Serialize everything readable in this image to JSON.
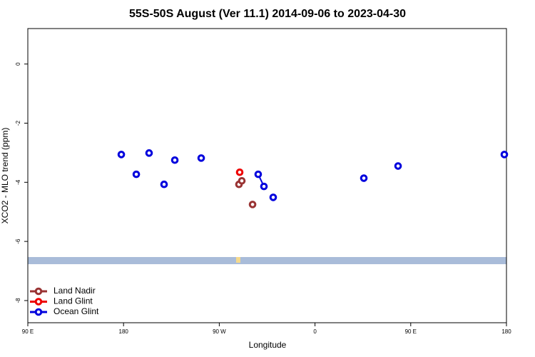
{
  "chart_data": {
    "type": "line",
    "title": "55S-50S August (Ver 11.1)   2014-09-06 to 2023-04-30",
    "x_label": "Longitude",
    "y_label": "XCO2 - MLO trend (ppm)",
    "xlim": [
      90,
      540
    ],
    "xticks": [
      {
        "value": 90,
        "label": "90 E"
      },
      180,
      {
        "value": 270,
        "label": "90 W"
      },
      {
        "value": 360,
        "label": "0"
      },
      {
        "value": 450,
        "label": "90 E"
      },
      {
        "value": 540,
        "label": "180"
      }
    ],
    "ylim": [
      -8.75,
      1.2
    ],
    "yticks": [
      0,
      -2,
      -4,
      -6,
      -8
    ],
    "legend": "bottom-left",
    "series": [
      {
        "name": "Land Nadir",
        "color": "#993333",
        "x": [
          288.5,
          291.2,
          null,
          301.3
        ],
        "values": [
          -4.07,
          -3.95,
          null,
          -4.75
        ]
      },
      {
        "name": "Land Glint",
        "color": "#ee0000",
        "x": [
          289.2
        ],
        "values": [
          -3.66
        ]
      },
      {
        "name": "Ocean Glint",
        "color": "#0000dd",
        "x": [
          177.9,
          null,
          192.0,
          null,
          204.0,
          null,
          218.1,
          null,
          228.2,
          null,
          253.0,
          null,
          306.6,
          312.0,
          null,
          320.7,
          null,
          405.9,
          null,
          438.1,
          null,
          538.0
        ],
        "values": [
          -3.06,
          null,
          -3.73,
          null,
          -3.01,
          null,
          -4.07,
          null,
          -3.25,
          null,
          -3.18,
          null,
          -3.73,
          -4.14,
          null,
          -4.51,
          null,
          -3.86,
          null,
          -3.45,
          null,
          -3.06
        ]
      }
    ]
  }
}
